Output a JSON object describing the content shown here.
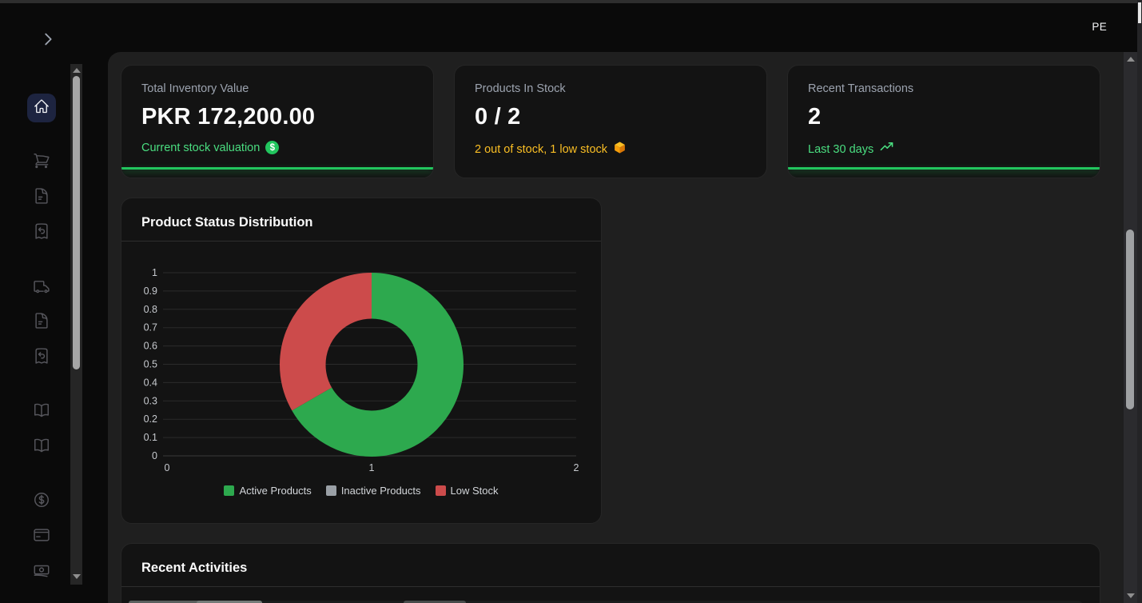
{
  "colors": {
    "accent_green": "#4ade80",
    "underline_green": "#22c55e",
    "accent_amber": "#fbbf24",
    "active_nav_bg": "#1d2440",
    "chart_green": "#2da94e",
    "chart_gray": "#9aa0a6",
    "chart_red": "#cc4b4b"
  },
  "header": {
    "user_initials": "PE"
  },
  "sidebar": {
    "active_item": "home-icon",
    "items": [
      "home-icon",
      "shopping-cart-icon",
      "sales-invoice-icon",
      "sales-return-icon",
      "delivery-truck-icon",
      "purchase-invoice-icon",
      "purchase-return-icon",
      "ledger-book-icon",
      "journal-book-icon",
      "currency-dollar-icon",
      "credit-card-icon",
      "banknotes-icon"
    ]
  },
  "stat_cards": [
    {
      "title": "Total Inventory Value",
      "value": "PKR 172,200.00",
      "subtitle": "Current stock valuation",
      "subtitle_icon": "dollar-coin-icon",
      "accent": "green",
      "bottom_line": true
    },
    {
      "title": "Products In Stock",
      "value": "0 / 2",
      "subtitle": "2 out of stock, 1 low stock",
      "subtitle_icon": "package-icon",
      "accent": "amber",
      "bottom_line": false
    },
    {
      "title": "Recent Transactions",
      "value": "2",
      "subtitle": "Last 30 days",
      "subtitle_icon": "trending-up-icon",
      "accent": "green",
      "bottom_line": true
    }
  ],
  "chart_data": {
    "type": "pie",
    "subtype": "donut",
    "title": "Product Status Distribution",
    "labels": [
      "Active Products",
      "Inactive Products",
      "Low Stock"
    ],
    "values": [
      2,
      0,
      1
    ],
    "colors": [
      "#2da94e",
      "#9aa0a6",
      "#cc4b4b"
    ],
    "donut_hole_ratio": 0.5,
    "grid": true,
    "legend_position": "bottom",
    "y_axis": {
      "min": 0,
      "max": 1,
      "step": 0.1,
      "tick_labels": [
        "0",
        "0.1",
        "0.2",
        "0.3",
        "0.4",
        "0.5",
        "0.6",
        "0.7",
        "0.8",
        "0.9",
        "1"
      ]
    },
    "x_axis": {
      "tick_labels": [
        "0",
        "1",
        "2"
      ]
    }
  },
  "activities": {
    "title": "Recent Activities"
  }
}
